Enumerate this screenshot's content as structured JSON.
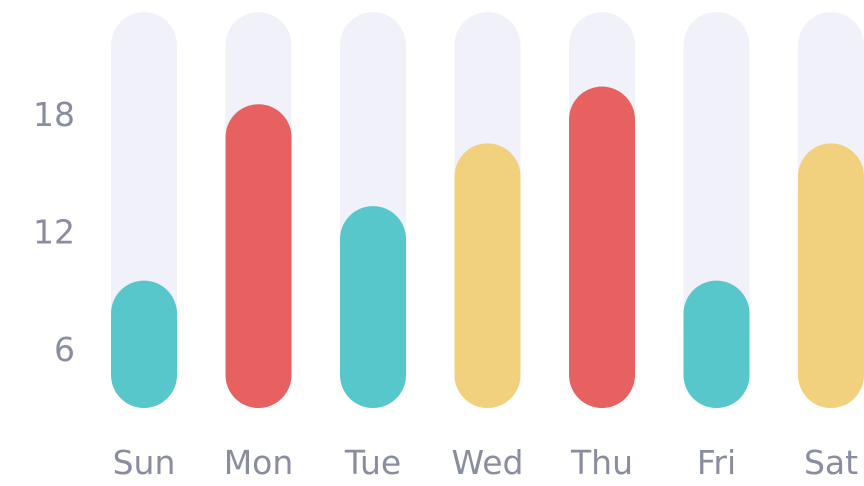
{
  "chart_data": {
    "type": "bar",
    "title": "",
    "xlabel": "",
    "ylabel": "",
    "categories": [
      "Sun",
      "Mon",
      "Tue",
      "Wed",
      "Thu",
      "Fri",
      "Sat"
    ],
    "values": [
      9.5,
      18.5,
      13.3,
      16.5,
      19.4,
      9.5,
      16.5
    ],
    "colors": [
      "#58c7cc",
      "#e86161",
      "#58c7cc",
      "#f1d17e",
      "#e86161",
      "#58c7cc",
      "#f1d17e"
    ],
    "track_color": "#f1f1f9",
    "track_max": 23.2,
    "y_ticks": [
      6,
      12,
      18
    ],
    "y_tick_labels": [
      "6",
      "12",
      "18"
    ],
    "ylim": [
      0,
      23.2
    ],
    "grid": false,
    "legend": "none"
  }
}
